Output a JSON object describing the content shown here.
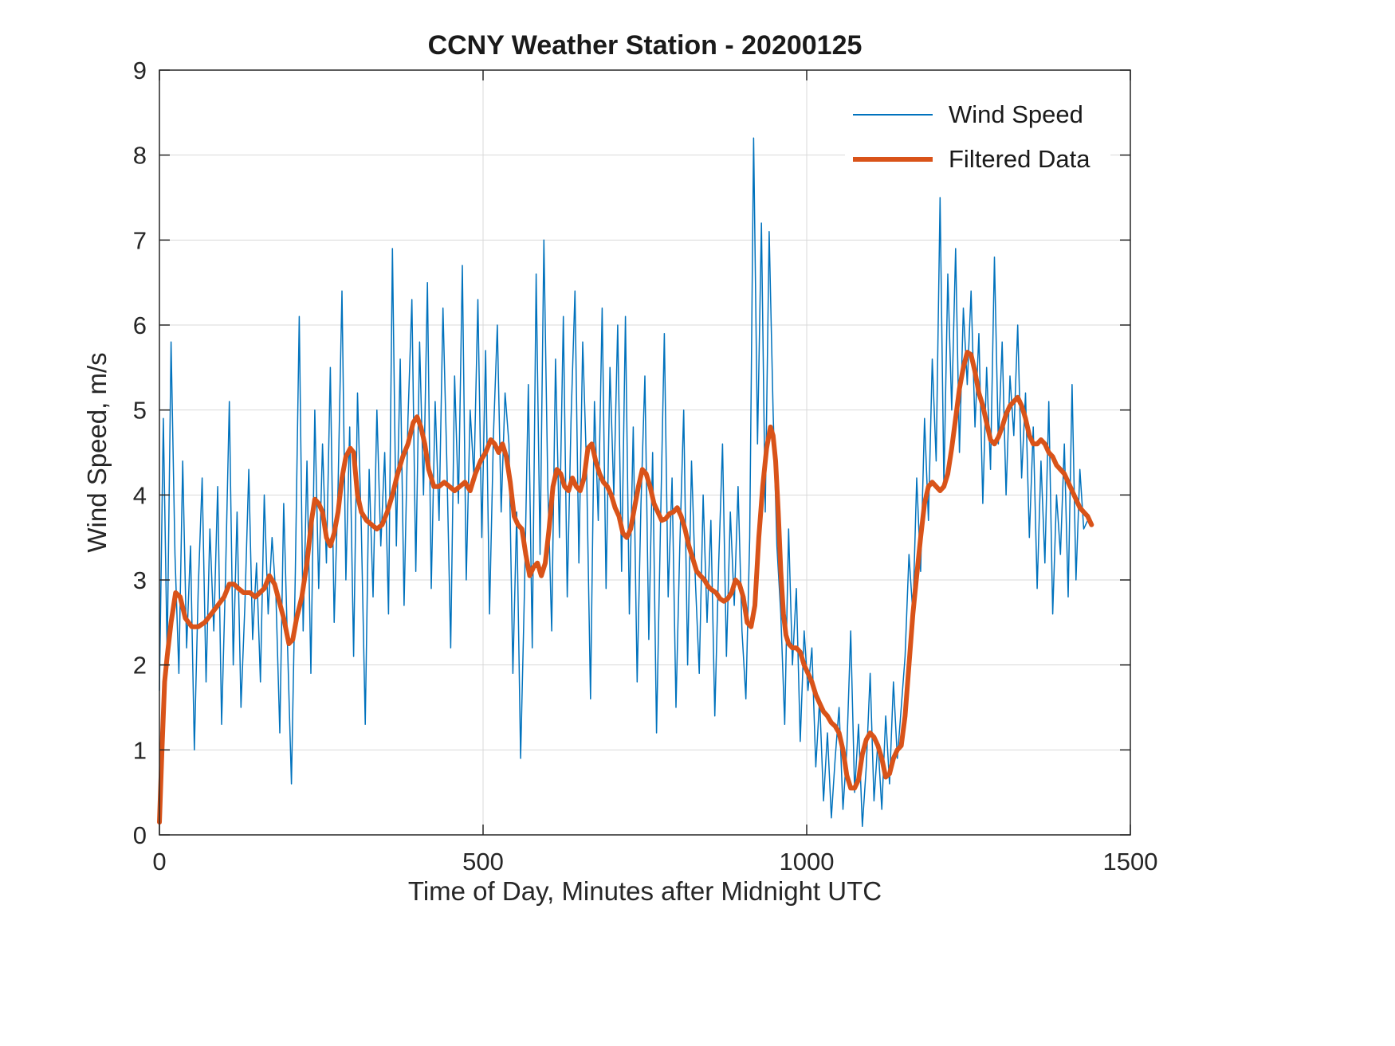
{
  "chart_data": {
    "type": "line",
    "title": "CCNY Weather Station - 20200125",
    "xlabel": "Time of Day, Minutes after Midnight UTC",
    "ylabel": "Wind Speed, m/s",
    "xlim": [
      0,
      1500
    ],
    "ylim": [
      0,
      9
    ],
    "xticks": [
      0,
      500,
      1000,
      1500
    ],
    "yticks": [
      0,
      1,
      2,
      3,
      4,
      5,
      6,
      7,
      8,
      9
    ],
    "grid": true,
    "legend": {
      "position": "top-right",
      "entries": [
        {
          "label": "Wind Speed",
          "color": "#0072BD",
          "line_width": 2
        },
        {
          "label": "Filtered Data",
          "color": "#D95319",
          "line_width": 6
        }
      ]
    },
    "series": [
      {
        "name": "Wind Speed",
        "color": "#0072BD",
        "width": 1.5,
        "x_start": 0,
        "x_step": 6,
        "y": [
          1.7,
          4.9,
          2.1,
          5.8,
          3.3,
          1.9,
          4.4,
          2.2,
          3.4,
          1.0,
          2.9,
          4.2,
          1.8,
          3.6,
          2.4,
          4.1,
          1.3,
          3.0,
          5.1,
          2.0,
          3.8,
          1.5,
          2.7,
          4.3,
          2.3,
          3.2,
          1.8,
          4.0,
          2.6,
          3.5,
          2.8,
          1.2,
          3.9,
          2.2,
          0.6,
          3.1,
          6.1,
          2.4,
          4.4,
          1.9,
          5.0,
          2.9,
          4.6,
          3.2,
          5.5,
          2.5,
          4.1,
          6.4,
          3.0,
          4.8,
          2.1,
          5.2,
          3.6,
          1.3,
          4.3,
          2.8,
          5.0,
          3.4,
          4.5,
          2.6,
          6.9,
          3.4,
          5.6,
          2.7,
          4.9,
          6.3,
          3.1,
          5.8,
          4.0,
          6.5,
          2.9,
          5.1,
          3.7,
          6.2,
          4.4,
          2.2,
          5.4,
          3.9,
          6.7,
          3.0,
          5.0,
          4.2,
          6.3,
          3.5,
          5.7,
          2.6,
          4.7,
          6.0,
          3.8,
          5.2,
          4.6,
          1.9,
          3.8,
          0.9,
          2.9,
          5.3,
          2.2,
          6.6,
          3.3,
          7.0,
          4.1,
          2.4,
          5.6,
          3.5,
          6.1,
          2.8,
          4.9,
          6.4,
          3.2,
          5.8,
          4.3,
          1.6,
          5.1,
          3.7,
          6.2,
          2.9,
          5.5,
          4.0,
          6.0,
          3.1,
          6.1,
          2.6,
          4.8,
          1.8,
          3.9,
          5.4,
          2.3,
          4.5,
          1.2,
          3.6,
          5.9,
          2.8,
          4.2,
          1.5,
          3.4,
          5.0,
          2.0,
          4.4,
          3.0,
          1.9,
          4.0,
          2.5,
          3.7,
          1.4,
          3.2,
          4.6,
          2.1,
          3.8,
          2.7,
          4.1,
          2.4,
          1.6,
          3.5,
          8.2,
          4.6,
          7.2,
          3.8,
          7.1,
          5.0,
          3.4,
          2.6,
          1.3,
          3.6,
          2.0,
          2.9,
          1.1,
          2.4,
          1.7,
          2.2,
          0.8,
          1.6,
          0.4,
          1.2,
          0.2,
          0.9,
          1.5,
          0.3,
          1.0,
          2.4,
          0.5,
          1.3,
          0.1,
          0.8,
          1.9,
          0.4,
          1.1,
          0.3,
          1.4,
          0.6,
          1.8,
          0.9,
          1.5,
          2.1,
          3.3,
          2.6,
          4.2,
          3.1,
          4.9,
          3.7,
          5.6,
          4.4,
          7.5,
          4.1,
          6.6,
          5.0,
          6.9,
          4.5,
          6.2,
          5.3,
          6.4,
          4.8,
          5.9,
          3.9,
          5.5,
          4.3,
          6.8,
          4.6,
          5.8,
          4.0,
          5.4,
          4.7,
          6.0,
          4.2,
          5.2,
          3.5,
          4.8,
          2.9,
          4.4,
          3.2,
          5.1,
          2.6,
          4.0,
          3.3,
          4.6,
          2.8,
          5.3,
          3.0,
          4.3,
          3.6,
          3.7
        ]
      },
      {
        "name": "Filtered Data",
        "color": "#D95319",
        "width": 6,
        "points": [
          [
            0,
            0.15
          ],
          [
            4,
            1.0
          ],
          [
            8,
            1.8
          ],
          [
            12,
            2.1
          ],
          [
            18,
            2.5
          ],
          [
            25,
            2.85
          ],
          [
            32,
            2.8
          ],
          [
            40,
            2.55
          ],
          [
            50,
            2.45
          ],
          [
            60,
            2.45
          ],
          [
            70,
            2.5
          ],
          [
            80,
            2.6
          ],
          [
            90,
            2.7
          ],
          [
            100,
            2.8
          ],
          [
            108,
            2.95
          ],
          [
            115,
            2.95
          ],
          [
            122,
            2.9
          ],
          [
            130,
            2.85
          ],
          [
            140,
            2.85
          ],
          [
            148,
            2.8
          ],
          [
            155,
            2.85
          ],
          [
            162,
            2.9
          ],
          [
            170,
            3.05
          ],
          [
            178,
            2.95
          ],
          [
            185,
            2.75
          ],
          [
            192,
            2.55
          ],
          [
            200,
            2.25
          ],
          [
            206,
            2.3
          ],
          [
            212,
            2.55
          ],
          [
            220,
            2.8
          ],
          [
            228,
            3.2
          ],
          [
            235,
            3.7
          ],
          [
            240,
            3.95
          ],
          [
            246,
            3.9
          ],
          [
            252,
            3.8
          ],
          [
            258,
            3.5
          ],
          [
            264,
            3.4
          ],
          [
            270,
            3.55
          ],
          [
            276,
            3.8
          ],
          [
            282,
            4.2
          ],
          [
            288,
            4.45
          ],
          [
            295,
            4.55
          ],
          [
            300,
            4.5
          ],
          [
            306,
            4.0
          ],
          [
            312,
            3.8
          ],
          [
            320,
            3.7
          ],
          [
            328,
            3.65
          ],
          [
            336,
            3.6
          ],
          [
            344,
            3.65
          ],
          [
            352,
            3.8
          ],
          [
            360,
            4.0
          ],
          [
            368,
            4.25
          ],
          [
            376,
            4.45
          ],
          [
            384,
            4.6
          ],
          [
            392,
            4.85
          ],
          [
            398,
            4.92
          ],
          [
            404,
            4.8
          ],
          [
            410,
            4.6
          ],
          [
            416,
            4.3
          ],
          [
            424,
            4.1
          ],
          [
            432,
            4.1
          ],
          [
            440,
            4.15
          ],
          [
            448,
            4.1
          ],
          [
            456,
            4.05
          ],
          [
            464,
            4.1
          ],
          [
            472,
            4.15
          ],
          [
            480,
            4.05
          ],
          [
            488,
            4.25
          ],
          [
            496,
            4.4
          ],
          [
            504,
            4.5
          ],
          [
            512,
            4.65
          ],
          [
            518,
            4.6
          ],
          [
            524,
            4.5
          ],
          [
            530,
            4.6
          ],
          [
            536,
            4.45
          ],
          [
            542,
            4.15
          ],
          [
            548,
            3.75
          ],
          [
            554,
            3.65
          ],
          [
            560,
            3.6
          ],
          [
            566,
            3.3
          ],
          [
            572,
            3.05
          ],
          [
            578,
            3.15
          ],
          [
            584,
            3.2
          ],
          [
            590,
            3.05
          ],
          [
            596,
            3.2
          ],
          [
            602,
            3.6
          ],
          [
            608,
            4.1
          ],
          [
            614,
            4.3
          ],
          [
            620,
            4.25
          ],
          [
            626,
            4.1
          ],
          [
            632,
            4.05
          ],
          [
            638,
            4.2
          ],
          [
            644,
            4.1
          ],
          [
            650,
            4.05
          ],
          [
            656,
            4.2
          ],
          [
            662,
            4.55
          ],
          [
            668,
            4.6
          ],
          [
            674,
            4.4
          ],
          [
            680,
            4.25
          ],
          [
            686,
            4.15
          ],
          [
            692,
            4.1
          ],
          [
            698,
            4.0
          ],
          [
            704,
            3.85
          ],
          [
            710,
            3.75
          ],
          [
            716,
            3.55
          ],
          [
            722,
            3.5
          ],
          [
            728,
            3.6
          ],
          [
            734,
            3.85
          ],
          [
            740,
            4.1
          ],
          [
            746,
            4.3
          ],
          [
            752,
            4.25
          ],
          [
            758,
            4.1
          ],
          [
            764,
            3.9
          ],
          [
            770,
            3.8
          ],
          [
            776,
            3.7
          ],
          [
            782,
            3.72
          ],
          [
            788,
            3.78
          ],
          [
            794,
            3.8
          ],
          [
            800,
            3.85
          ],
          [
            806,
            3.75
          ],
          [
            812,
            3.6
          ],
          [
            818,
            3.4
          ],
          [
            824,
            3.25
          ],
          [
            830,
            3.1
          ],
          [
            836,
            3.05
          ],
          [
            842,
            3.0
          ],
          [
            848,
            2.92
          ],
          [
            854,
            2.88
          ],
          [
            860,
            2.85
          ],
          [
            866,
            2.78
          ],
          [
            872,
            2.75
          ],
          [
            878,
            2.78
          ],
          [
            884,
            2.85
          ],
          [
            890,
            3.0
          ],
          [
            896,
            2.95
          ],
          [
            902,
            2.8
          ],
          [
            908,
            2.5
          ],
          [
            914,
            2.45
          ],
          [
            920,
            2.7
          ],
          [
            926,
            3.5
          ],
          [
            932,
            4.1
          ],
          [
            938,
            4.55
          ],
          [
            944,
            4.8
          ],
          [
            948,
            4.7
          ],
          [
            952,
            4.4
          ],
          [
            956,
            3.8
          ],
          [
            960,
            3.1
          ],
          [
            964,
            2.6
          ],
          [
            968,
            2.35
          ],
          [
            972,
            2.25
          ],
          [
            978,
            2.2
          ],
          [
            984,
            2.2
          ],
          [
            990,
            2.15
          ],
          [
            996,
            2.0
          ],
          [
            1002,
            1.9
          ],
          [
            1008,
            1.8
          ],
          [
            1014,
            1.65
          ],
          [
            1020,
            1.55
          ],
          [
            1026,
            1.45
          ],
          [
            1032,
            1.4
          ],
          [
            1038,
            1.32
          ],
          [
            1044,
            1.28
          ],
          [
            1050,
            1.2
          ],
          [
            1056,
            1.0
          ],
          [
            1062,
            0.7
          ],
          [
            1068,
            0.55
          ],
          [
            1074,
            0.55
          ],
          [
            1080,
            0.65
          ],
          [
            1086,
            0.95
          ],
          [
            1092,
            1.12
          ],
          [
            1098,
            1.2
          ],
          [
            1104,
            1.15
          ],
          [
            1110,
            1.05
          ],
          [
            1116,
            0.9
          ],
          [
            1122,
            0.68
          ],
          [
            1128,
            0.72
          ],
          [
            1134,
            0.9
          ],
          [
            1140,
            1.0
          ],
          [
            1146,
            1.05
          ],
          [
            1152,
            1.4
          ],
          [
            1158,
            2.0
          ],
          [
            1164,
            2.6
          ],
          [
            1170,
            3.05
          ],
          [
            1176,
            3.5
          ],
          [
            1182,
            3.9
          ],
          [
            1188,
            4.1
          ],
          [
            1194,
            4.15
          ],
          [
            1200,
            4.1
          ],
          [
            1206,
            4.05
          ],
          [
            1212,
            4.1
          ],
          [
            1218,
            4.25
          ],
          [
            1224,
            4.55
          ],
          [
            1230,
            4.9
          ],
          [
            1236,
            5.25
          ],
          [
            1242,
            5.5
          ],
          [
            1248,
            5.68
          ],
          [
            1254,
            5.65
          ],
          [
            1260,
            5.45
          ],
          [
            1266,
            5.2
          ],
          [
            1272,
            5.05
          ],
          [
            1278,
            4.85
          ],
          [
            1284,
            4.65
          ],
          [
            1290,
            4.6
          ],
          [
            1296,
            4.68
          ],
          [
            1302,
            4.8
          ],
          [
            1308,
            4.95
          ],
          [
            1314,
            5.05
          ],
          [
            1320,
            5.1
          ],
          [
            1326,
            5.15
          ],
          [
            1332,
            5.05
          ],
          [
            1338,
            4.9
          ],
          [
            1344,
            4.7
          ],
          [
            1350,
            4.6
          ],
          [
            1356,
            4.6
          ],
          [
            1362,
            4.65
          ],
          [
            1368,
            4.6
          ],
          [
            1374,
            4.5
          ],
          [
            1380,
            4.45
          ],
          [
            1386,
            4.35
          ],
          [
            1392,
            4.3
          ],
          [
            1398,
            4.25
          ],
          [
            1404,
            4.15
          ],
          [
            1410,
            4.05
          ],
          [
            1416,
            3.95
          ],
          [
            1422,
            3.85
          ],
          [
            1428,
            3.8
          ],
          [
            1434,
            3.75
          ],
          [
            1440,
            3.65
          ]
        ]
      }
    ]
  },
  "colors": {
    "axis": "#262626",
    "grid": "#d9d9d9",
    "tick_label": "#262626",
    "background": "#ffffff"
  }
}
